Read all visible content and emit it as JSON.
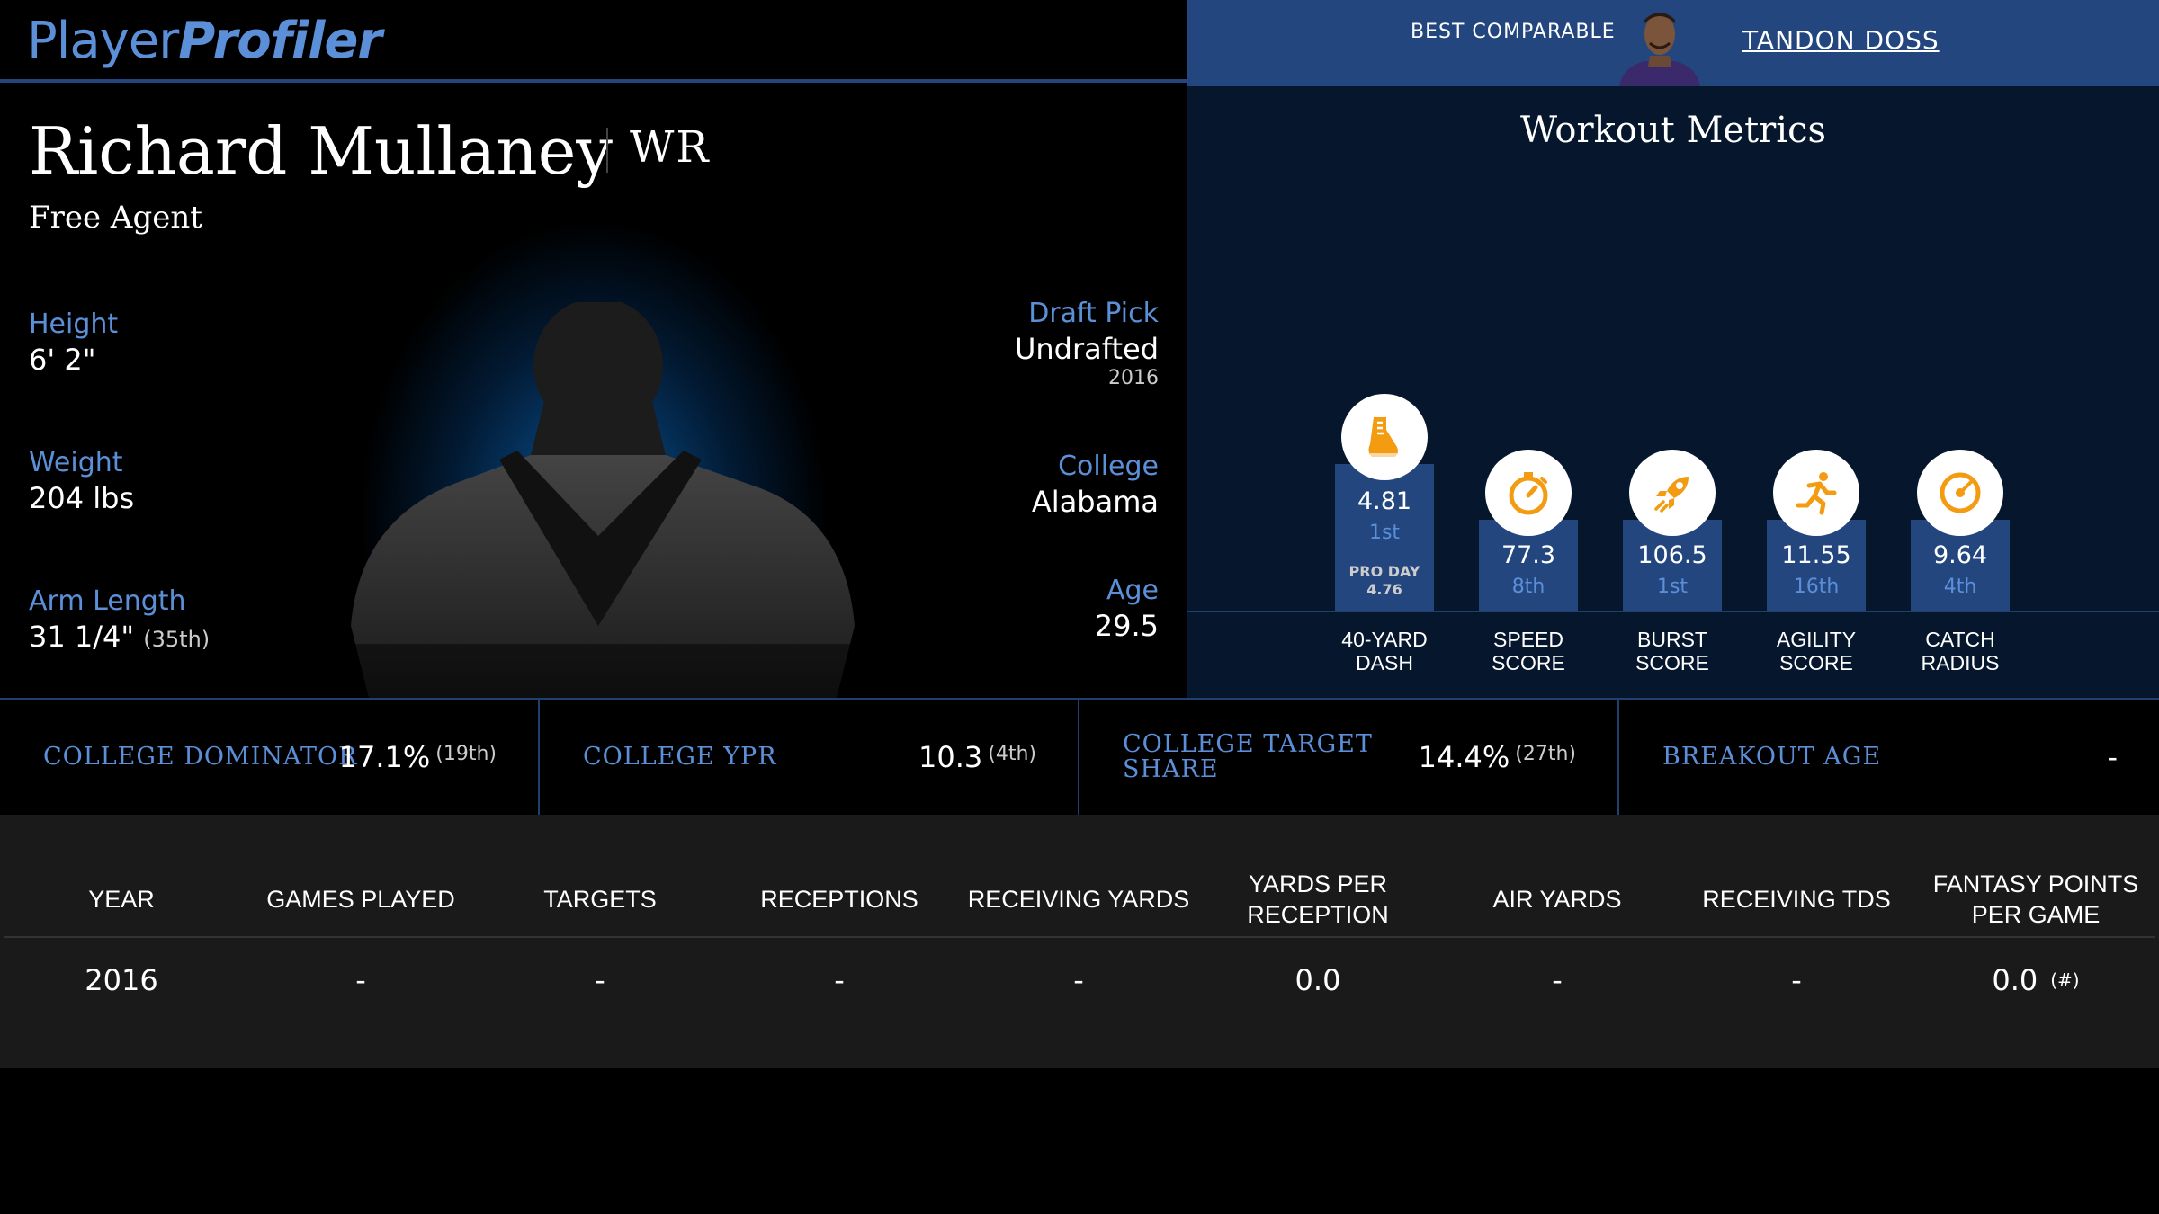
{
  "header": {
    "logo_part1": "Player",
    "logo_part2": "Profiler",
    "best_comparable_label": "BEST COMPARABLE",
    "best_comparable_name": "TANDON DOSS"
  },
  "player": {
    "name": "Richard Mullaney",
    "position": "WR",
    "team": "Free Agent",
    "height_label": "Height",
    "height": "6' 2\"",
    "weight_label": "Weight",
    "weight": "204 lbs",
    "arm_length_label": "Arm Length",
    "arm_length": "31 1/4\"",
    "arm_length_rank": "(35th)",
    "draft_pick_label": "Draft Pick",
    "draft_pick": "Undrafted",
    "draft_year": "2016",
    "college_label": "College",
    "college": "Alabama",
    "age_label": "Age",
    "age": "29.5"
  },
  "workout": {
    "title": "Workout Metrics",
    "metrics": [
      {
        "value": "4.81",
        "rank": "1st",
        "pro_day_label": "PRO DAY",
        "pro_day_value": "4.76",
        "label": "40-YARD DASH",
        "icon": "shoe-icon"
      },
      {
        "value": "77.3",
        "rank": "8th",
        "label": "SPEED SCORE",
        "icon": "stopwatch-icon"
      },
      {
        "value": "106.5",
        "rank": "1st",
        "label": "BURST SCORE",
        "icon": "rocket-icon"
      },
      {
        "value": "11.55",
        "rank": "16th",
        "label": "AGILITY SCORE",
        "icon": "runner-icon"
      },
      {
        "value": "9.64",
        "rank": "4th",
        "label": "CATCH RADIUS",
        "icon": "target-icon"
      }
    ],
    "accent_color": "#f39c12"
  },
  "college_stats": [
    {
      "label": "COLLEGE DOMINATOR",
      "value": "17.1%",
      "rank": "(19th)"
    },
    {
      "label": "COLLEGE YPR",
      "value": "10.3",
      "rank": "(4th)"
    },
    {
      "label": "COLLEGE TARGET SHARE",
      "value": "14.4%",
      "rank": "(27th)"
    },
    {
      "label": "BREAKOUT AGE",
      "value": "-",
      "rank": ""
    }
  ],
  "table": {
    "headers": [
      "YEAR",
      "GAMES PLAYED",
      "TARGETS",
      "RECEPTIONS",
      "RECEIVING YARDS",
      "YARDS PER RECEPTION",
      "AIR YARDS",
      "RECEIVING TDS",
      "FANTASY POINTS PER GAME"
    ],
    "rows": [
      {
        "year": "2016",
        "games_played": "-",
        "targets": "-",
        "receptions": "-",
        "receiving_yards": "-",
        "yards_per_reception": "0.0",
        "air_yards": "-",
        "receiving_tds": "-",
        "fantasy_points": "0.0",
        "fantasy_rank": "(#)"
      }
    ]
  },
  "colors": {
    "brand_blue": "#5b8fd8",
    "panel_blue": "#24467f",
    "workout_bg": "#05162d"
  }
}
